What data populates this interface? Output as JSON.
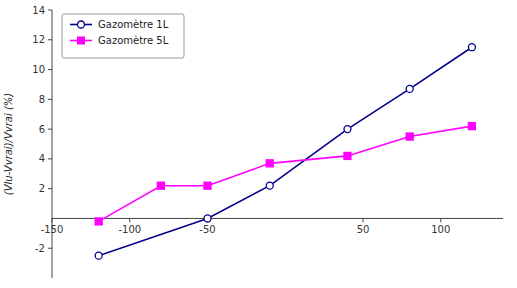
{
  "chart_data": {
    "type": "line",
    "y_label": "(Vlu-Vvrai)/Vvrai (%)",
    "series": [
      {
        "name": "Gazomètre 1L",
        "color": "#00008B",
        "marker": "circle",
        "x": [
          -120,
          -50,
          -10,
          40,
          80,
          120
        ],
        "values": [
          -2.5,
          0.0,
          2.2,
          6.0,
          8.7,
          11.5
        ]
      },
      {
        "name": "Gazomètre 5L",
        "color": "#FF00FF",
        "marker": "square",
        "x": [
          -120,
          -80,
          -50,
          -10,
          40,
          80,
          120
        ],
        "values": [
          -0.2,
          2.2,
          2.2,
          3.7,
          4.2,
          5.5,
          6.2
        ]
      }
    ],
    "xlim": [
      -150,
      140
    ],
    "ylim": [
      -4,
      14
    ],
    "xticks": [
      -150,
      -100,
      -50,
      50,
      100
    ],
    "yticks": [
      -2,
      2,
      4,
      6,
      8,
      10,
      12,
      14
    ],
    "legend": "upper left"
  }
}
